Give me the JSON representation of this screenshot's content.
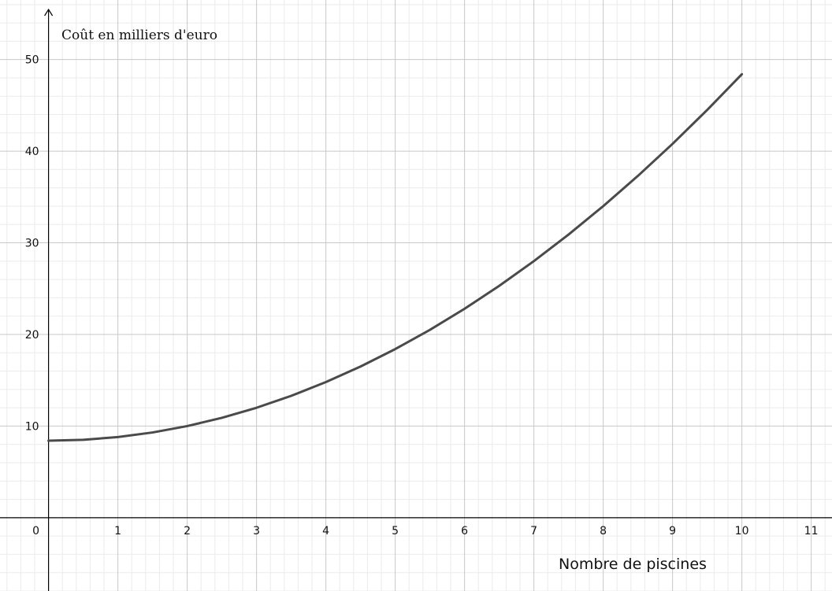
{
  "chart_data": {
    "type": "line",
    "xlabel": "Nombre de piscines",
    "ylabel": "Coût en milliers d'euro",
    "xlim": [
      -0.7,
      11.3
    ],
    "ylim": [
      -8.0,
      56.5
    ],
    "x_ticks": [
      0,
      1,
      2,
      3,
      4,
      5,
      6,
      7,
      8,
      9,
      10,
      11
    ],
    "y_ticks": [
      10,
      20,
      30,
      40,
      50
    ],
    "grid": true,
    "minor_grid_step": 2,
    "series": [
      {
        "color": "#4a4a4a",
        "x": [
          0,
          0.5,
          1,
          1.5,
          2,
          2.5,
          3,
          3.5,
          4,
          4.5,
          5,
          5.5,
          6,
          6.5,
          7,
          7.5,
          8,
          8.5,
          9,
          9.5,
          10
        ],
        "y": [
          8.4,
          8.5,
          8.8,
          9.3,
          10.0,
          10.9,
          12.0,
          13.3,
          14.8,
          16.5,
          18.4,
          20.5,
          22.8,
          25.3,
          28.0,
          30.9,
          34.0,
          37.3,
          40.8,
          44.5,
          48.4
        ]
      }
    ]
  }
}
